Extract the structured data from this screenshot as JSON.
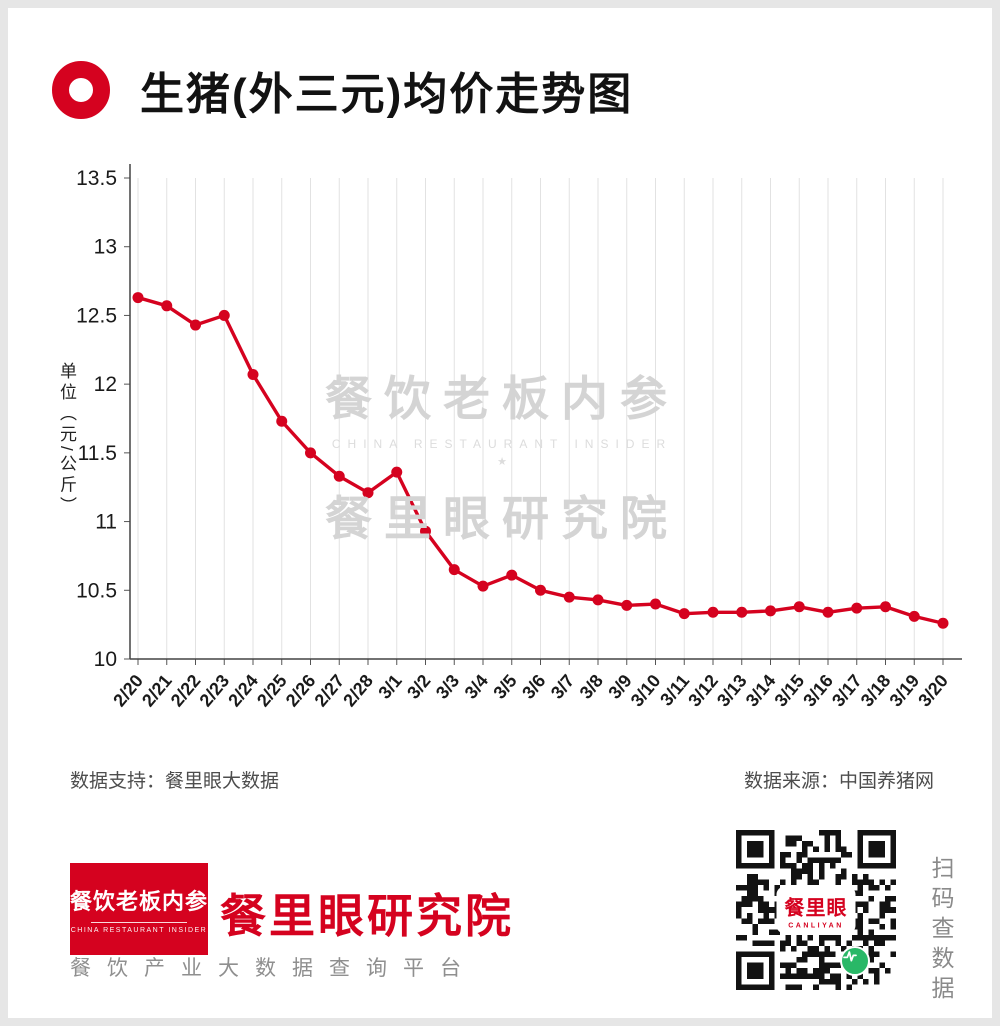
{
  "header": {
    "title": "生猪(外三元)均价走势图"
  },
  "chart_data": {
    "type": "line",
    "title": "生猪(外三元)均价走势图",
    "ylabel": "单位（元/公斤）",
    "xlabel": "",
    "ylim": [
      10,
      13.5
    ],
    "ytick_step": 0.5,
    "grid": "vertical",
    "legend": "none",
    "line_color": "#d5021f",
    "categories": [
      "2/20",
      "2/21",
      "2/22",
      "2/23",
      "2/24",
      "2/25",
      "2/26",
      "2/27",
      "2/28",
      "3/1",
      "3/2",
      "3/3",
      "3/4",
      "3/5",
      "3/6",
      "3/7",
      "3/8",
      "3/9",
      "3/10",
      "3/11",
      "3/12",
      "3/13",
      "3/14",
      "3/15",
      "3/16",
      "3/17",
      "3/18",
      "3/19",
      "3/20"
    ],
    "values": [
      12.63,
      12.57,
      12.43,
      12.5,
      12.07,
      11.73,
      11.5,
      11.33,
      11.21,
      11.36,
      10.93,
      10.65,
      10.53,
      10.61,
      10.5,
      10.45,
      10.43,
      10.39,
      10.4,
      10.33,
      10.34,
      10.34,
      10.35,
      10.38,
      10.34,
      10.37,
      10.38,
      10.31,
      10.26
    ]
  },
  "watermark": {
    "line1": "餐饮老板内参",
    "line_en": "CHINA RESTAURANT INSIDER",
    "star": "★",
    "line2": "餐里眼研究院"
  },
  "sources": {
    "left": "数据支持：餐里眼大数据",
    "right": "数据来源：中国养猪网"
  },
  "footer": {
    "logo": {
      "line1": "餐饮老板内参",
      "line2": "CHINA RESTAURANT INSIDER"
    },
    "brand": "餐里眼研究院",
    "tagline": "餐饮产业大数据查询平台",
    "qr": {
      "label": "餐里眼",
      "sublabel": "CANLIYAN"
    },
    "scan_text": "扫码查数据"
  },
  "colors": {
    "accent_red": "#d5021f",
    "qr_green": "#29b867",
    "grid": "#e2e2e2",
    "axis": "#444444"
  }
}
